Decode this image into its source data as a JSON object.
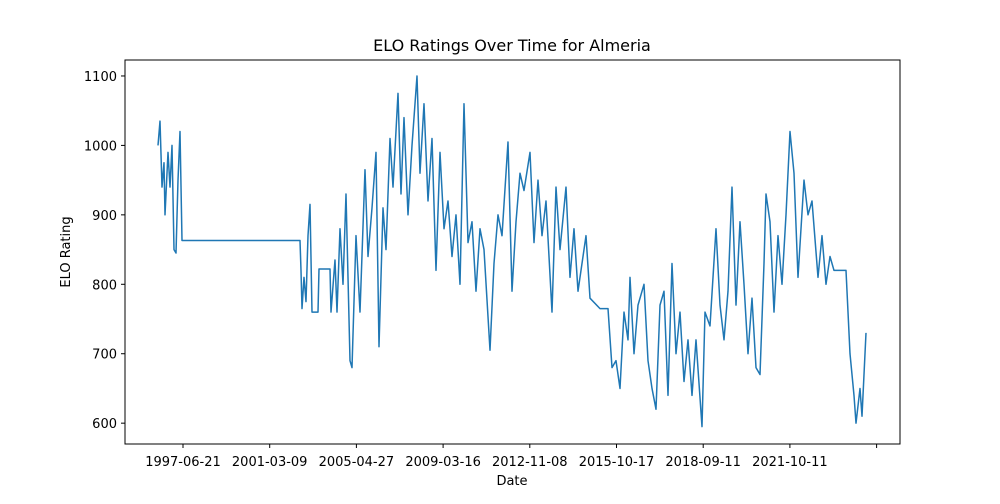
{
  "chart_data": {
    "type": "line",
    "title": "ELO Ratings Over Time for Almeria",
    "x_label": "Date",
    "y_label": "ELO Rating",
    "series": [
      {
        "name": "Almeria",
        "color": "#1f77b4",
        "x": [
          0,
          2,
          4,
          6,
          7,
          10,
          12,
          14,
          16,
          18,
          20,
          22,
          24,
          142,
          143,
          144,
          146,
          148,
          150,
          152,
          154,
          160,
          161,
          172,
          173,
          177,
          179,
          182,
          185,
          188,
          192,
          194,
          198,
          202,
          207,
          210,
          214,
          218,
          221,
          225,
          228,
          232,
          235,
          240,
          243,
          246,
          250,
          254,
          259,
          262,
          266,
          270,
          274,
          278,
          282,
          286,
          290,
          294,
          298,
          302,
          306,
          310,
          314,
          318,
          322,
          326,
          332,
          336,
          340,
          344,
          350,
          354,
          358,
          362,
          366,
          372,
          376,
          380,
          384,
          388,
          394,
          398,
          402,
          408,
          412,
          416,
          420,
          428,
          432,
          442,
          450,
          454,
          458,
          462,
          466,
          470,
          472,
          476,
          480,
          486,
          490,
          494,
          498,
          502,
          506,
          510,
          514,
          518,
          522,
          526,
          530,
          534,
          538,
          544,
          547,
          552,
          558,
          562,
          566,
          570,
          574,
          578,
          582,
          586,
          590,
          594,
          598,
          602,
          606,
          608,
          612,
          616,
          620,
          624,
          628,
          632,
          636,
          640,
          646,
          650,
          654,
          660,
          664,
          668,
          672,
          676,
          688,
          692,
          696,
          698,
          702,
          704,
          708
        ],
        "values": [
          1000,
          1035,
          940,
          975,
          900,
          990,
          940,
          1000,
          850,
          845,
          950,
          1020,
          863,
          863,
          820,
          765,
          810,
          775,
          870,
          915,
          760,
          760,
          822,
          822,
          760,
          835,
          760,
          880,
          800,
          930,
          690,
          680,
          870,
          760,
          965,
          840,
          910,
          990,
          710,
          910,
          850,
          1010,
          940,
          1075,
          930,
          1040,
          900,
          1000,
          1100,
          960,
          1060,
          920,
          1010,
          820,
          990,
          880,
          920,
          840,
          900,
          800,
          1060,
          860,
          890,
          790,
          880,
          850,
          705,
          830,
          900,
          870,
          1005,
          790,
          890,
          960,
          935,
          990,
          860,
          950,
          870,
          920,
          760,
          940,
          850,
          940,
          810,
          880,
          790,
          870,
          780,
          765,
          765,
          680,
          690,
          650,
          760,
          720,
          810,
          700,
          770,
          800,
          690,
          650,
          620,
          770,
          790,
          640,
          830,
          700,
          760,
          660,
          720,
          640,
          720,
          595,
          760,
          740,
          880,
          770,
          720,
          790,
          940,
          770,
          890,
          800,
          700,
          780,
          680,
          670,
          830,
          930,
          890,
          760,
          870,
          800,
          900,
          1020,
          960,
          810,
          950,
          900,
          920,
          810,
          870,
          800,
          840,
          820,
          820,
          700,
          640,
          600,
          650,
          610,
          730
        ]
      }
    ],
    "xlim": [
      -33,
      742
    ],
    "xticks": [
      {
        "value": 25,
        "label": "1997-06-21"
      },
      {
        "value": 111.7,
        "label": "2001-03-09"
      },
      {
        "value": 198.4,
        "label": "2005-04-27"
      },
      {
        "value": 285.1,
        "label": "2009-03-16"
      },
      {
        "value": 371.8,
        "label": "2012-11-08"
      },
      {
        "value": 458.5,
        "label": "2015-10-17"
      },
      {
        "value": 545.2,
        "label": "2018-09-11"
      },
      {
        "value": 631.9,
        "label": "2021-10-11"
      },
      {
        "value": 718.6,
        "label": null
      }
    ],
    "ylim": [
      570,
      1123
    ],
    "yticks": [
      600,
      700,
      800,
      900,
      1000,
      1100
    ]
  }
}
